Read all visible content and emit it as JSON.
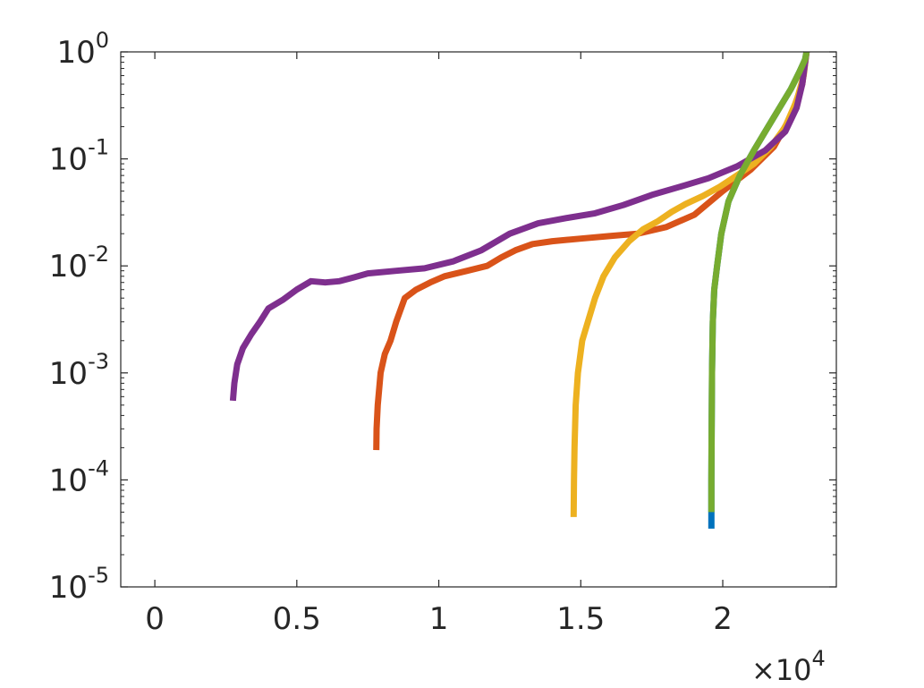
{
  "chart_data": {
    "type": "line",
    "title": "",
    "xlabel": "",
    "ylabel": "",
    "xscale": "linear",
    "yscale": "log",
    "xlim": [
      -1200,
      24000
    ],
    "ylim": [
      1e-05,
      1
    ],
    "grid": false,
    "x_multiplier": {
      "times": "×",
      "base": "10",
      "exponent": "4"
    },
    "x_ticks": [
      {
        "value": 0,
        "label": "0"
      },
      {
        "value": 5000,
        "label": "0.5"
      },
      {
        "value": 10000,
        "label": "1"
      },
      {
        "value": 15000,
        "label": "1.5"
      },
      {
        "value": 20000,
        "label": "2"
      }
    ],
    "y_ticks": [
      {
        "value": 1,
        "base": "10",
        "exponent": "0"
      },
      {
        "value": 0.1,
        "base": "10",
        "exponent": "-1"
      },
      {
        "value": 0.01,
        "base": "10",
        "exponent": "-2"
      },
      {
        "value": 0.001,
        "base": "10",
        "exponent": "-3"
      },
      {
        "value": 0.0001,
        "base": "10",
        "exponent": "-4"
      },
      {
        "value": 1e-05,
        "base": "10",
        "exponent": "-5"
      }
    ],
    "series": [
      {
        "color": "#0072BD",
        "points": [
          [
            19600,
            3.5e-05
          ],
          [
            19600,
            0.0001
          ],
          [
            19610,
            0.0003
          ],
          [
            19620,
            0.001
          ],
          [
            19650,
            0.003
          ],
          [
            19700,
            0.006
          ],
          [
            19800,
            0.01
          ],
          [
            19950,
            0.02
          ],
          [
            20200,
            0.04
          ],
          [
            20600,
            0.07
          ],
          [
            21100,
            0.12
          ],
          [
            21600,
            0.2
          ],
          [
            22000,
            0.3
          ],
          [
            22400,
            0.45
          ],
          [
            22700,
            0.65
          ],
          [
            22900,
            0.85
          ],
          [
            22950,
            1.0
          ]
        ]
      },
      {
        "color": "#D95319",
        "points": [
          [
            7800,
            0.00019
          ],
          [
            7810,
            0.0003
          ],
          [
            7850,
            0.0005
          ],
          [
            7950,
            0.001
          ],
          [
            8100,
            0.0015
          ],
          [
            8300,
            0.002
          ],
          [
            8500,
            0.003
          ],
          [
            8800,
            0.005
          ],
          [
            9200,
            0.006
          ],
          [
            9700,
            0.007
          ],
          [
            10200,
            0.008
          ],
          [
            11000,
            0.009
          ],
          [
            11700,
            0.01
          ],
          [
            12200,
            0.012
          ],
          [
            12700,
            0.014
          ],
          [
            13300,
            0.016
          ],
          [
            14000,
            0.017
          ],
          [
            15000,
            0.018
          ],
          [
            16000,
            0.019
          ],
          [
            17000,
            0.02
          ],
          [
            18000,
            0.023
          ],
          [
            19000,
            0.03
          ],
          [
            20000,
            0.05
          ],
          [
            21000,
            0.08
          ],
          [
            21800,
            0.13
          ],
          [
            22400,
            0.25
          ],
          [
            22800,
            0.5
          ],
          [
            22950,
            1.0
          ]
        ]
      },
      {
        "color": "#EDB120",
        "points": [
          [
            14750,
            4.5e-05
          ],
          [
            14760,
            0.0001
          ],
          [
            14780,
            0.0002
          ],
          [
            14820,
            0.0005
          ],
          [
            14900,
            0.001
          ],
          [
            15050,
            0.002
          ],
          [
            15250,
            0.003
          ],
          [
            15500,
            0.005
          ],
          [
            15800,
            0.008
          ],
          [
            16200,
            0.012
          ],
          [
            16700,
            0.017
          ],
          [
            17200,
            0.022
          ],
          [
            17700,
            0.026
          ],
          [
            18200,
            0.032
          ],
          [
            18700,
            0.038
          ],
          [
            19300,
            0.045
          ],
          [
            19900,
            0.055
          ],
          [
            20500,
            0.07
          ],
          [
            21100,
            0.09
          ],
          [
            21700,
            0.13
          ],
          [
            22200,
            0.2
          ],
          [
            22600,
            0.35
          ],
          [
            22850,
            0.6
          ],
          [
            22950,
            1.0
          ]
        ]
      },
      {
        "color": "#7E2F8E",
        "points": [
          [
            2750,
            0.00055
          ],
          [
            2800,
            0.0008
          ],
          [
            2900,
            0.0012
          ],
          [
            3100,
            0.0017
          ],
          [
            3400,
            0.0023
          ],
          [
            3700,
            0.003
          ],
          [
            4000,
            0.004
          ],
          [
            4500,
            0.0048
          ],
          [
            5000,
            0.006
          ],
          [
            5500,
            0.0072
          ],
          [
            6000,
            0.007
          ],
          [
            6500,
            0.0072
          ],
          [
            7000,
            0.0078
          ],
          [
            7500,
            0.0085
          ],
          [
            8500,
            0.009
          ],
          [
            9500,
            0.0095
          ],
          [
            10500,
            0.011
          ],
          [
            11500,
            0.014
          ],
          [
            12500,
            0.02
          ],
          [
            13500,
            0.025
          ],
          [
            14500,
            0.028
          ],
          [
            15500,
            0.031
          ],
          [
            16500,
            0.037
          ],
          [
            17500,
            0.046
          ],
          [
            18500,
            0.055
          ],
          [
            19500,
            0.066
          ],
          [
            20500,
            0.085
          ],
          [
            21500,
            0.12
          ],
          [
            22200,
            0.18
          ],
          [
            22600,
            0.3
          ],
          [
            22800,
            0.5
          ],
          [
            22950,
            1.0
          ]
        ]
      },
      {
        "color": "#77AC30",
        "points": [
          [
            19600,
            5e-05
          ],
          [
            19600,
            0.0001
          ],
          [
            19610,
            0.0003
          ],
          [
            19620,
            0.001
          ],
          [
            19650,
            0.003
          ],
          [
            19700,
            0.006
          ],
          [
            19800,
            0.01
          ],
          [
            19950,
            0.02
          ],
          [
            20200,
            0.04
          ],
          [
            20600,
            0.07
          ],
          [
            21100,
            0.12
          ],
          [
            21600,
            0.2
          ],
          [
            22000,
            0.3
          ],
          [
            22400,
            0.45
          ],
          [
            22700,
            0.65
          ],
          [
            22900,
            0.85
          ],
          [
            22950,
            1.0
          ]
        ]
      }
    ]
  }
}
